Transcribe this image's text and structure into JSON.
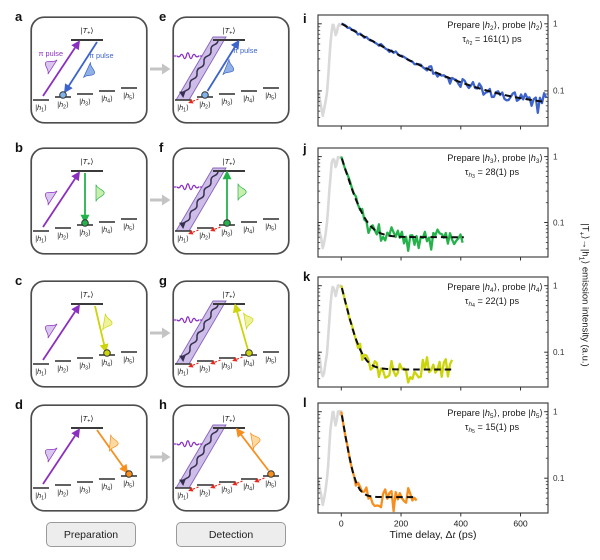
{
  "colors": {
    "purple": "#8b2fc0",
    "purple_light": "#d9c6ef",
    "purple_band": "rgba(158,124,209,0.5)",
    "band_edge": "rgba(116,79,178,0.85)",
    "wave": "#353050",
    "blue": "#3d63cc",
    "blue_light": "#8fb1e6",
    "blue_dot": "#7fb2e8",
    "green": "#24b24b",
    "green_light": "#c9efae",
    "yellow": "#ccd40a",
    "yellow_light": "#eef29a",
    "orange": "#f78f1e",
    "orange_light": "#fcd9a0",
    "red": "#e8291c",
    "gray_curve": "#d9d9d9",
    "fit": "#0d0d0d",
    "frame": "#333333",
    "panel_border": "#4d4d4d",
    "arrow_gray": "#c4c4c4",
    "button_bg": "#ededed",
    "text": "#1a1a1a"
  },
  "diagram": {
    "top_level": {
      "sym": "T",
      "sub": "+"
    },
    "levels": [
      {
        "sym": "h",
        "sub": "1"
      },
      {
        "sym": "h",
        "sub": "2"
      },
      {
        "sym": "h",
        "sub": "3"
      },
      {
        "sym": "h",
        "sub": "4"
      },
      {
        "sym": "h",
        "sub": "5"
      }
    ],
    "pi_label": "π pulse"
  },
  "panels": [
    {
      "letter": "a",
      "type": "preparation",
      "drive_color": "blue",
      "target": 2,
      "dot_color": "blue_dot",
      "pi_labels": [
        "pump",
        "drive"
      ],
      "hops": 0
    },
    {
      "letter": "b",
      "type": "preparation",
      "drive_color": "green",
      "target": 3,
      "dot_color": "green",
      "pi_labels": [],
      "hops": 0
    },
    {
      "letter": "c",
      "type": "preparation",
      "drive_color": "yellow",
      "target": 4,
      "dot_color": "yellow",
      "pi_labels": [],
      "hops": 0
    },
    {
      "letter": "d",
      "type": "preparation",
      "drive_color": "orange",
      "target": 5,
      "dot_color": "orange",
      "pi_labels": [],
      "hops": 0
    },
    {
      "letter": "e",
      "type": "detection",
      "drive_color": "blue",
      "target": 2,
      "dot_color": "blue_dot",
      "pi_labels": [
        "drive"
      ],
      "hops": 1
    },
    {
      "letter": "f",
      "type": "detection",
      "drive_color": "green",
      "target": 3,
      "dot_color": "green",
      "pi_labels": [],
      "hops": 2
    },
    {
      "letter": "g",
      "type": "detection",
      "drive_color": "yellow",
      "target": 4,
      "dot_color": "yellow",
      "pi_labels": [],
      "hops": 3
    },
    {
      "letter": "h",
      "type": "detection",
      "drive_color": "orange",
      "target": 5,
      "dot_color": "orange",
      "pi_labels": [],
      "hops": 4
    }
  ],
  "plots": [
    {
      "letter": "i",
      "color": "blue",
      "prepare_sub": "2",
      "tau_value": "161(1) ps",
      "tau_ps": 161,
      "floor": 0.055,
      "amplitude": 0.95,
      "data_end_ps": 690,
      "fit_end_ps": 690,
      "seed": 11
    },
    {
      "letter": "j",
      "color": "green",
      "prepare_sub": "3",
      "tau_value": "28(1) ps",
      "tau_ps": 28,
      "floor": 0.06,
      "amplitude": 0.94,
      "data_end_ps": 410,
      "fit_end_ps": 420,
      "seed": 23
    },
    {
      "letter": "k",
      "color": "yellow",
      "prepare_sub": "4",
      "tau_value": "22(1) ps",
      "tau_ps": 22,
      "floor": 0.055,
      "amplitude": 0.95,
      "data_end_ps": 372,
      "fit_end_ps": 382,
      "seed": 37
    },
    {
      "letter": "l",
      "color": "orange",
      "prepare_sub": "5",
      "tau_value": "15(1) ps",
      "tau_ps": 15,
      "floor": 0.052,
      "amplitude": 0.95,
      "data_end_ps": 255,
      "fit_end_ps": 262,
      "seed": 51
    }
  ],
  "plot_text": {
    "prepare_pre": "Prepare |",
    "ket_sym": "h",
    "prepare_mid": "⟩, probe |",
    "prepare_post": "⟩",
    "tau_sym": "τ",
    "equals": " = "
  },
  "axis": {
    "x_ticks": [
      0,
      200,
      400,
      600
    ],
    "x_label_pre": "Time delay, Δ",
    "x_label_it": "t",
    "x_label_post": " (ps)",
    "y_tick_labels": [
      "1",
      "0.1"
    ],
    "y_range": [
      0.03,
      1.35
    ],
    "x_range_ps": [
      -78,
      692
    ],
    "y_scale": "log"
  },
  "ylabel": {
    "p1": "|T",
    "s1": "+",
    "p2": "⟩→|h",
    "s2": "1",
    "p3": "⟩ emission intensity (a.u.)"
  },
  "buttons": {
    "preparation": "Preparation",
    "detection": "Detection"
  },
  "laser_pulse_base": [
    [
      -78,
      0.1
    ],
    [
      -72,
      0.075
    ],
    [
      -67,
      0.055
    ],
    [
      -62,
      0.042
    ],
    [
      -58,
      0.05
    ],
    [
      -53,
      0.068
    ],
    [
      -48,
      0.1
    ],
    [
      -44,
      0.16
    ],
    [
      -40,
      0.3
    ],
    [
      -36,
      0.52
    ],
    [
      -32,
      0.78
    ],
    [
      -29,
      0.92
    ],
    [
      -26,
      0.97
    ],
    [
      -23,
      0.82
    ],
    [
      -19,
      0.66
    ],
    [
      -15,
      0.78
    ],
    [
      -11,
      0.95
    ],
    [
      -7,
      1.02
    ],
    [
      -3,
      0.96
    ],
    [
      0,
      1.0
    ]
  ],
  "chart_data": [
    {
      "type": "line",
      "panel": "i",
      "annotation": "Prepare |h2>, probe |h2>",
      "fit_label": "tau_h2 = 161(1) ps",
      "x_axis": {
        "label": "Time delay, dt (ps)",
        "range": [
          -78,
          692
        ],
        "ticks": [
          0,
          200,
          400,
          600
        ]
      },
      "y_axis": {
        "label": "|T+> -> |h1> emission intensity (a.u.)",
        "scale": "log",
        "ticks": [
          1,
          0.1
        ],
        "range": [
          0.03,
          1.35
        ]
      },
      "series": [
        {
          "name": "laser_reference",
          "color": "#d9d9d9",
          "points_ref": "laser_pulse_base"
        },
        {
          "name": "h2_decay",
          "color": "#3d63cc",
          "model": "I(t)=0.95*exp(-t/161)+0.055",
          "t_range": [
            0,
            690
          ]
        },
        {
          "name": "exponential_fit",
          "color": "#0d0d0d",
          "style": "dashed",
          "tau_ps": 161,
          "baseline": 0.055
        }
      ]
    },
    {
      "type": "line",
      "panel": "j",
      "annotation": "Prepare |h3>, probe |h3>",
      "fit_label": "tau_h3 = 28(1) ps",
      "x_axis": {
        "label": "Time delay, dt (ps)",
        "range": [
          -78,
          692
        ],
        "ticks": [
          0,
          200,
          400,
          600
        ]
      },
      "y_axis": {
        "label": "|T+> -> |h1> emission intensity (a.u.)",
        "scale": "log",
        "ticks": [
          1,
          0.1
        ],
        "range": [
          0.03,
          1.35
        ]
      },
      "series": [
        {
          "name": "laser_reference",
          "color": "#d9d9d9",
          "points_ref": "laser_pulse_base"
        },
        {
          "name": "h3_decay",
          "color": "#24b24b",
          "model": "I(t)=0.94*exp(-t/28)+0.060",
          "t_range": [
            0,
            410
          ]
        },
        {
          "name": "exponential_fit",
          "color": "#0d0d0d",
          "style": "dashed",
          "tau_ps": 28,
          "baseline": 0.06
        }
      ]
    },
    {
      "type": "line",
      "panel": "k",
      "annotation": "Prepare |h4>, probe |h4>",
      "fit_label": "tau_h4 = 22(1) ps",
      "x_axis": {
        "label": "Time delay, dt (ps)",
        "range": [
          -78,
          692
        ],
        "ticks": [
          0,
          200,
          400,
          600
        ]
      },
      "y_axis": {
        "label": "|T+> -> |h1> emission intensity (a.u.)",
        "scale": "log",
        "ticks": [
          1,
          0.1
        ],
        "range": [
          0.03,
          1.35
        ]
      },
      "series": [
        {
          "name": "laser_reference",
          "color": "#d9d9d9",
          "points_ref": "laser_pulse_base"
        },
        {
          "name": "h4_decay",
          "color": "#ccd40a",
          "model": "I(t)=0.95*exp(-t/22)+0.055",
          "t_range": [
            0,
            372
          ]
        },
        {
          "name": "exponential_fit",
          "color": "#0d0d0d",
          "style": "dashed",
          "tau_ps": 22,
          "baseline": 0.055
        }
      ]
    },
    {
      "type": "line",
      "panel": "l",
      "annotation": "Prepare |h5>, probe |h5>",
      "fit_label": "tau_h5 = 15(1) ps",
      "x_axis": {
        "label": "Time delay, dt (ps)",
        "range": [
          -78,
          692
        ],
        "ticks": [
          0,
          200,
          400,
          600
        ]
      },
      "y_axis": {
        "label": "|T+> -> |h1> emission intensity (a.u.)",
        "scale": "log",
        "ticks": [
          1,
          0.1
        ],
        "range": [
          0.03,
          1.35
        ]
      },
      "series": [
        {
          "name": "laser_reference",
          "color": "#d9d9d9",
          "points_ref": "laser_pulse_base"
        },
        {
          "name": "h5_decay",
          "color": "#f78f1e",
          "model": "I(t)=0.95*exp(-t/15)+0.052",
          "t_range": [
            0,
            255
          ]
        },
        {
          "name": "exponential_fit",
          "color": "#0d0d0d",
          "style": "dashed",
          "tau_ps": 15,
          "baseline": 0.052
        }
      ]
    }
  ]
}
